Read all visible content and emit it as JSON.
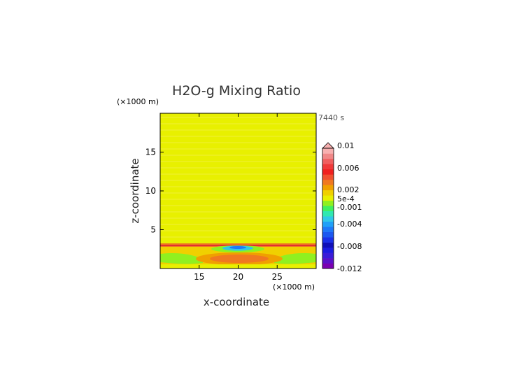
{
  "chart_data": {
    "type": "heatmap",
    "title": "H2O-g Mixing Ratio",
    "xlabel": "x-coordinate",
    "ylabel": "z-coordinate",
    "x_unit": "(×1000 m)",
    "y_unit": "(×1000 m)",
    "time_label": "7440 s",
    "xlim": [
      10,
      30
    ],
    "ylim": [
      0,
      20
    ],
    "x_ticks": [
      15,
      20,
      25
    ],
    "y_ticks": [
      5,
      10,
      15
    ],
    "colorbar": {
      "levels": [
        -0.012,
        -0.011,
        -0.01,
        -0.009,
        -0.008,
        -0.007,
        -0.006,
        -0.005,
        -0.004,
        -0.003,
        -0.002,
        -0.001,
        0.0005,
        0.001,
        0.002,
        0.003,
        0.004,
        0.005,
        0.006,
        0.007,
        0.008,
        0.009,
        0.01
      ],
      "colors": [
        "#7a00b0",
        "#5a10c8",
        "#3a1cd8",
        "#1c1ce0",
        "#1010b8",
        "#1a30e8",
        "#1c58f0",
        "#1e78f8",
        "#20a0f8",
        "#30c8e8",
        "#30e8b0",
        "#40f060",
        "#90f020",
        "#e8f000",
        "#f0d000",
        "#f0a000",
        "#f07820",
        "#f05030",
        "#f02020",
        "#f03a3a",
        "#f06060",
        "#f08888",
        "#f8b0b0"
      ],
      "tick_labels": [
        "0.01",
        "0.006",
        "0.002",
        "5e-4",
        "-0.001",
        "-0.004",
        "-0.008",
        "-0.012"
      ],
      "extend": "max"
    }
  }
}
